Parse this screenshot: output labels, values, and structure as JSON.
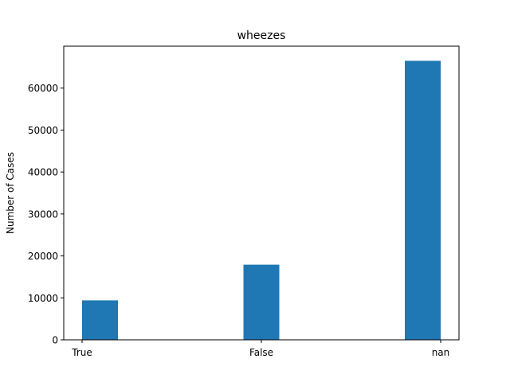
{
  "chart_data": {
    "type": "bar",
    "title": "wheezes",
    "xlabel": "",
    "ylabel": "Number of Cases",
    "categories": [
      "True",
      "False",
      "nan"
    ],
    "values": [
      9400,
      17900,
      66500
    ],
    "ylim": [
      0,
      70000
    ],
    "yticks": [
      0,
      10000,
      20000,
      30000,
      40000,
      50000,
      60000
    ],
    "ytick_labels": [
      "0",
      "10000",
      "20000",
      "30000",
      "40000",
      "50000",
      "60000"
    ],
    "bar_color": "#1f77b4",
    "grid": false,
    "legend": "none"
  }
}
